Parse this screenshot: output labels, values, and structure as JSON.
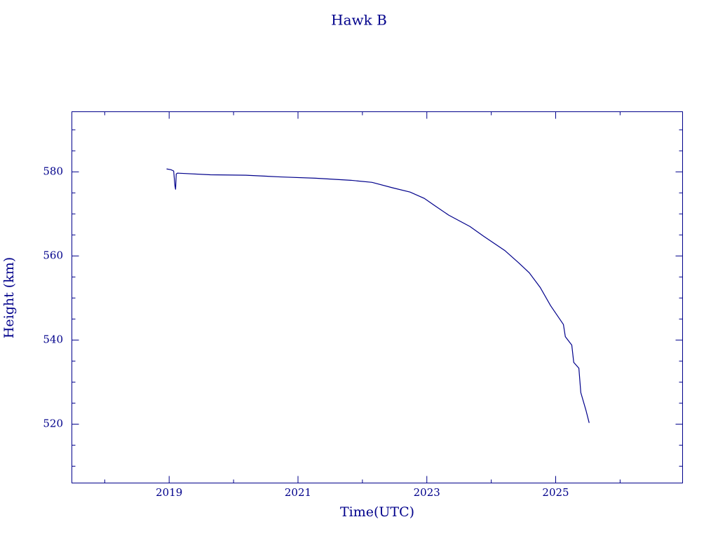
{
  "chart_data": {
    "type": "line",
    "title": "Hawk B",
    "xlabel": "Time(UTC)",
    "ylabel": "Height (km)",
    "x": [
      2018.96,
      2019.03,
      2019.07,
      2019.09,
      2019.1,
      2019.11,
      2019.13,
      2019.64,
      2020.19,
      2020.73,
      2021.27,
      2021.82,
      2022.15,
      2022.47,
      2022.74,
      2022.96,
      2023.12,
      2023.34,
      2023.67,
      2023.88,
      2024.21,
      2024.43,
      2024.59,
      2024.76,
      2024.92,
      2025.12,
      2025.15,
      2025.25,
      2025.28,
      2025.36,
      2025.39,
      2025.47,
      2025.52
    ],
    "values": [
      580.7,
      580.5,
      580.2,
      576.7,
      575.8,
      579.5,
      579.7,
      579.3,
      579.2,
      578.8,
      578.5,
      578.0,
      577.5,
      576.2,
      575.2,
      573.7,
      572.0,
      569.7,
      567.0,
      564.7,
      561.3,
      558.3,
      556.0,
      552.5,
      548.2,
      543.7,
      540.8,
      538.8,
      534.7,
      533.3,
      527.5,
      523.3,
      520.3
    ],
    "color": "#00008b",
    "xlim": [
      2017.49,
      2026.97
    ],
    "xticks": [
      2019,
      2021,
      2023,
      2025
    ],
    "xminorticks": [
      2018,
      2020,
      2022,
      2024,
      2026
    ],
    "ylim": [
      506,
      594.3
    ],
    "yticks": [
      520,
      540,
      560,
      580
    ],
    "yminorticks": [
      510,
      515,
      525,
      530,
      535,
      545,
      550,
      555,
      565,
      570,
      575,
      585,
      590
    ],
    "grid": false
  }
}
